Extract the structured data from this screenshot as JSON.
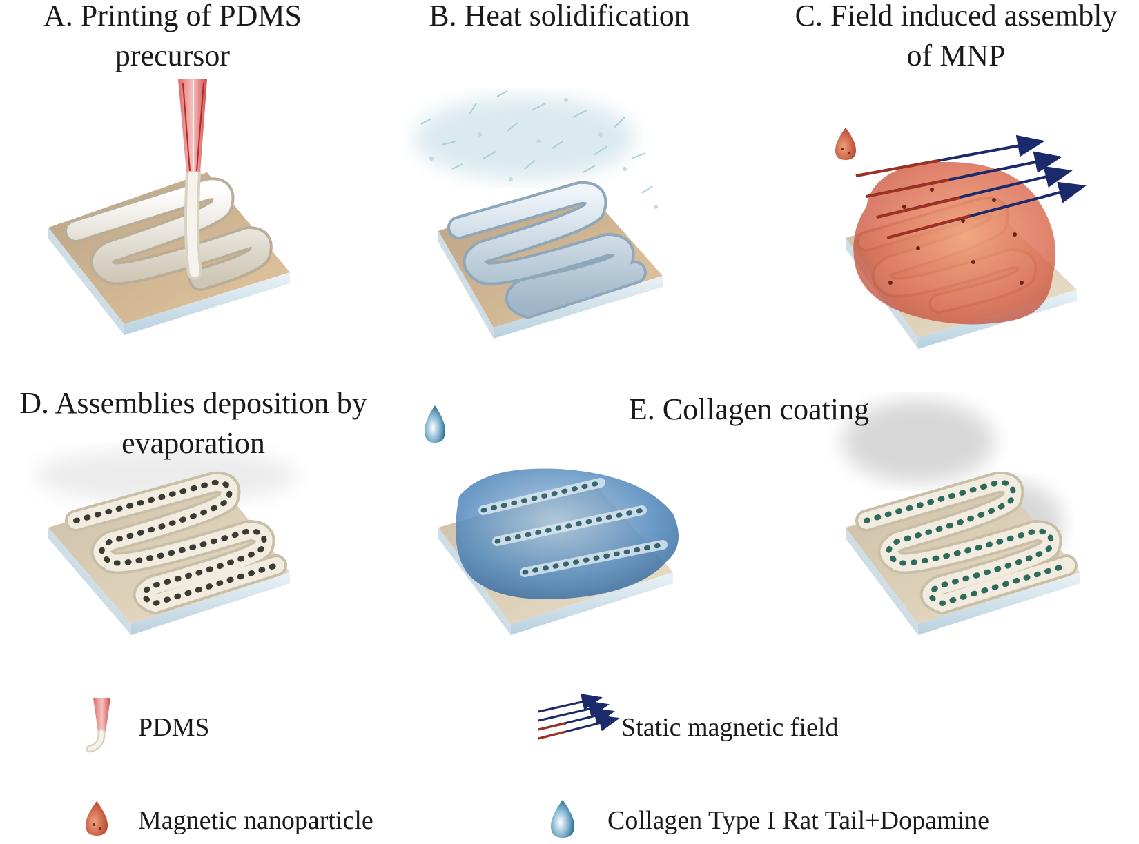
{
  "steps": [
    {
      "id": "A",
      "line1": "A. Printing of PDMS",
      "line2": "precursor"
    },
    {
      "id": "B",
      "line1": "B. Heat solidification",
      "line2": ""
    },
    {
      "id": "C",
      "line1": "C. Field induced assembly",
      "line2": "of MNP"
    },
    {
      "id": "D",
      "line1": "D. Assemblies deposition by",
      "line2": "evaporation"
    },
    {
      "id": "E",
      "line1": "E. Collagen coating",
      "line2": ""
    }
  ],
  "legend": {
    "pdms": "PDMS",
    "field": "Static magnetic field",
    "mnp": "Magnetic nanoparticle",
    "collagen": "Collagen Type I Rat Tail+Dopamine"
  },
  "colors": {
    "substrate": "#d9b98f",
    "glass": "#cfe1ec",
    "pdms_tube": "#f1ede4",
    "mnp": "#c9583b",
    "field_arrow_dark": "#1b2a6b",
    "field_arrow_red": "#a03020",
    "collagen_drop": "#3b79b3"
  }
}
